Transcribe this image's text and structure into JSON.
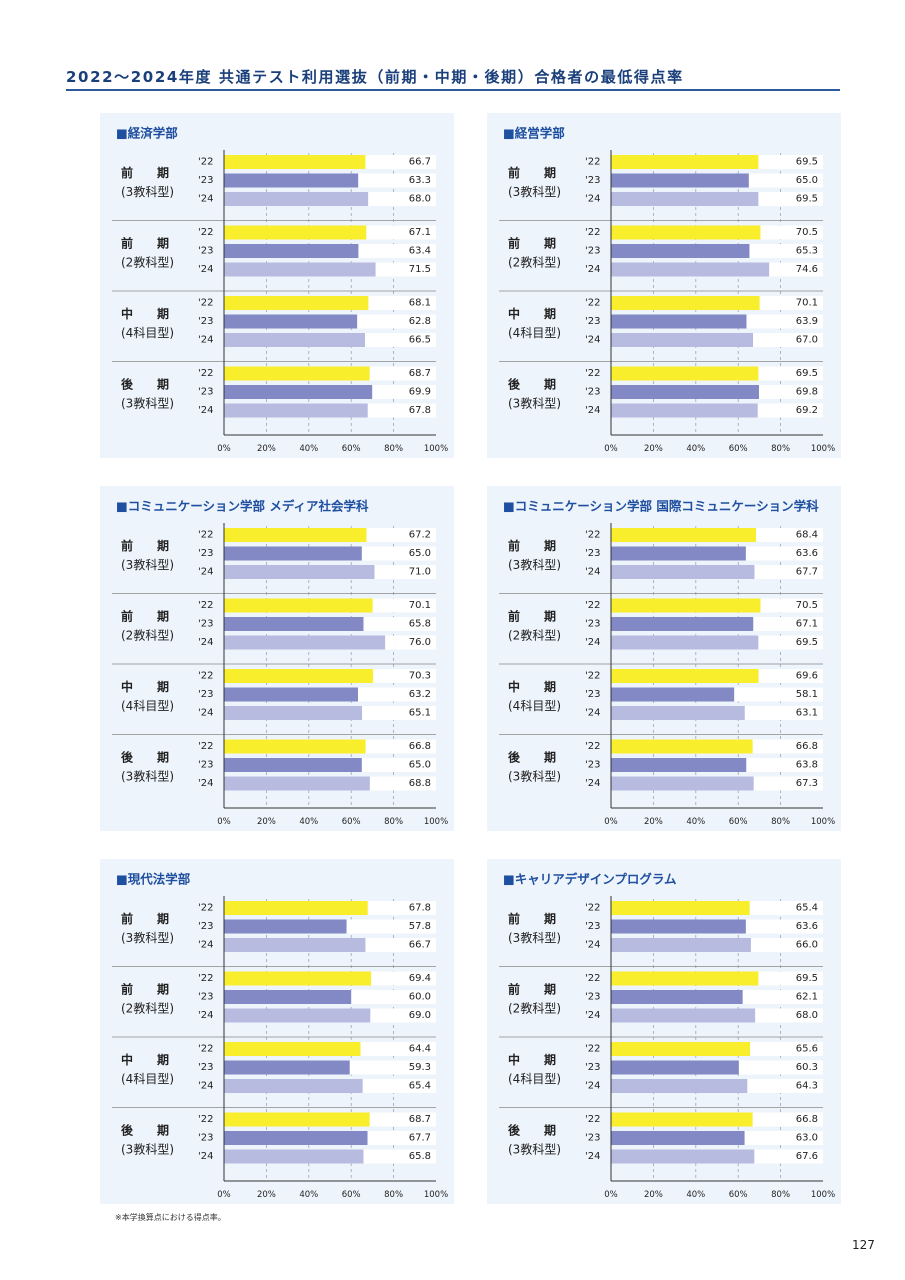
{
  "page": {
    "title": "2022～2024年度 共通テスト利用選抜（前期・中期・後期）合格者の最低得点率",
    "footnote": "※本学換算点における得点率。",
    "page_number": "127"
  },
  "colors": {
    "year22": "#f8ee2c",
    "year23": "#8289c5",
    "year24": "#b8bbe0",
    "panel_bg": "#eef4fb",
    "title": "#1a3f7a",
    "heading": "#1f4fa0"
  },
  "axis": {
    "ticks": [
      "0%",
      "20%",
      "40%",
      "60%",
      "80%",
      "100%"
    ],
    "max": 100
  },
  "chart_data": [
    {
      "type": "bar",
      "title": "■経済学部",
      "categories": [
        "'22",
        "'23",
        "'24"
      ],
      "xlim": [
        0,
        100
      ],
      "groups": [
        {
          "label": [
            "前　　期",
            "(3教科型)"
          ],
          "values": [
            66.7,
            63.3,
            68.0
          ],
          "labels": [
            "66.7",
            "63.3",
            "68.0"
          ]
        },
        {
          "label": [
            "前　　期",
            "(2教科型)"
          ],
          "values": [
            67.1,
            63.4,
            71.5
          ],
          "labels": [
            "67.1",
            "63.4",
            "71.5"
          ]
        },
        {
          "label": [
            "中　　期",
            "(4科目型)"
          ],
          "values": [
            68.1,
            62.8,
            66.5
          ],
          "labels": [
            "68.1",
            "62.8",
            "66.5"
          ]
        },
        {
          "label": [
            "後　　期",
            "(3教科型)"
          ],
          "values": [
            68.7,
            69.9,
            67.8
          ],
          "labels": [
            "68.7",
            "69.9",
            "67.8"
          ]
        }
      ]
    },
    {
      "type": "bar",
      "title": "■経営学部",
      "categories": [
        "'22",
        "'23",
        "'24"
      ],
      "xlim": [
        0,
        100
      ],
      "groups": [
        {
          "label": [
            "前　　期",
            "(3教科型)"
          ],
          "values": [
            69.5,
            65.0,
            69.5
          ],
          "labels": [
            "69.5",
            "65.0",
            "69.5"
          ]
        },
        {
          "label": [
            "前　　期",
            "(2教科型)"
          ],
          "values": [
            70.5,
            65.3,
            74.6
          ],
          "labels": [
            "70.5",
            "65.3",
            "74.6"
          ]
        },
        {
          "label": [
            "中　　期",
            "(4科目型)"
          ],
          "values": [
            70.1,
            63.9,
            67.0
          ],
          "labels": [
            "70.1",
            "63.9",
            "67.0"
          ]
        },
        {
          "label": [
            "後　　期",
            "(3教科型)"
          ],
          "values": [
            69.5,
            69.8,
            69.2
          ],
          "labels": [
            "69.5",
            "69.8",
            "69.2"
          ]
        }
      ]
    },
    {
      "type": "bar",
      "title": "■コミュニケーション学部 メディア社会学科",
      "categories": [
        "'22",
        "'23",
        "'24"
      ],
      "xlim": [
        0,
        100
      ],
      "groups": [
        {
          "label": [
            "前　　期",
            "(3教科型)"
          ],
          "values": [
            67.2,
            65.0,
            71.0
          ],
          "labels": [
            "67.2",
            "65.0",
            "71.0"
          ]
        },
        {
          "label": [
            "前　　期",
            "(2教科型)"
          ],
          "values": [
            70.1,
            65.8,
            76.0
          ],
          "labels": [
            "70.1",
            "65.8",
            "76.0"
          ]
        },
        {
          "label": [
            "中　　期",
            "(4科目型)"
          ],
          "values": [
            70.3,
            63.2,
            65.1
          ],
          "labels": [
            "70.3",
            "63.2",
            "65.1"
          ]
        },
        {
          "label": [
            "後　　期",
            "(3教科型)"
          ],
          "values": [
            66.8,
            65.0,
            68.8
          ],
          "labels": [
            "66.8",
            "65.0",
            "68.8"
          ]
        }
      ]
    },
    {
      "type": "bar",
      "title": "■コミュニケーション学部 国際コミュニケーション学科",
      "categories": [
        "'22",
        "'23",
        "'24"
      ],
      "xlim": [
        0,
        100
      ],
      "groups": [
        {
          "label": [
            "前　　期",
            "(3教科型)"
          ],
          "values": [
            68.4,
            63.6,
            67.7
          ],
          "labels": [
            "68.4",
            "63.6",
            "67.7"
          ]
        },
        {
          "label": [
            "前　　期",
            "(2教科型)"
          ],
          "values": [
            70.5,
            67.1,
            69.5
          ],
          "labels": [
            "70.5",
            "67.1",
            "69.5"
          ]
        },
        {
          "label": [
            "中　　期",
            "(4科目型)"
          ],
          "values": [
            69.6,
            58.1,
            63.1
          ],
          "labels": [
            "69.6",
            "58.1",
            "63.1"
          ]
        },
        {
          "label": [
            "後　　期",
            "(3教科型)"
          ],
          "values": [
            66.8,
            63.8,
            67.3
          ],
          "labels": [
            "66.8",
            "63.8",
            "67.3"
          ]
        }
      ]
    },
    {
      "type": "bar",
      "title": "■現代法学部",
      "categories": [
        "'22",
        "'23",
        "'24"
      ],
      "xlim": [
        0,
        100
      ],
      "groups": [
        {
          "label": [
            "前　　期",
            "(3教科型)"
          ],
          "values": [
            67.8,
            57.8,
            66.7
          ],
          "labels": [
            "67.8",
            "57.8",
            "66.7"
          ]
        },
        {
          "label": [
            "前　　期",
            "(2教科型)"
          ],
          "values": [
            69.4,
            60.0,
            69.0
          ],
          "labels": [
            "69.4",
            "60.0",
            "69.0"
          ]
        },
        {
          "label": [
            "中　　期",
            "(4科目型)"
          ],
          "values": [
            64.4,
            59.3,
            65.4
          ],
          "labels": [
            "64.4",
            "59.3",
            "65.4"
          ]
        },
        {
          "label": [
            "後　　期",
            "(3教科型)"
          ],
          "values": [
            68.7,
            67.7,
            65.8
          ],
          "labels": [
            "68.7",
            "67.7",
            "65.8"
          ]
        }
      ]
    },
    {
      "type": "bar",
      "title": "■キャリアデザインプログラム",
      "categories": [
        "'22",
        "'23",
        "'24"
      ],
      "xlim": [
        0,
        100
      ],
      "groups": [
        {
          "label": [
            "前　　期",
            "(3教科型)"
          ],
          "values": [
            65.4,
            63.6,
            66.0
          ],
          "labels": [
            "65.4",
            "63.6",
            "66.0"
          ]
        },
        {
          "label": [
            "前　　期",
            "(2教科型)"
          ],
          "values": [
            69.5,
            62.1,
            68.0
          ],
          "labels": [
            "69.5",
            "62.1",
            "68.0"
          ]
        },
        {
          "label": [
            "中　　期",
            "(4科目型)"
          ],
          "values": [
            65.6,
            60.3,
            64.3
          ],
          "labels": [
            "65.6",
            "60.3",
            "64.3"
          ]
        },
        {
          "label": [
            "後　　期",
            "(3教科型)"
          ],
          "values": [
            66.8,
            63.0,
            67.6
          ],
          "labels": [
            "66.8",
            "63.0",
            "67.6"
          ]
        }
      ]
    }
  ]
}
